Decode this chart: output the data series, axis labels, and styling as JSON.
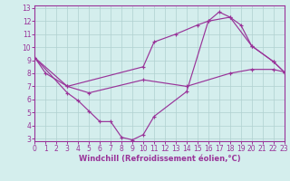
{
  "line1_x": [
    0,
    1,
    3,
    10,
    11,
    13,
    15,
    16,
    17,
    18,
    19,
    20,
    22,
    23
  ],
  "line1_y": [
    9.2,
    8.0,
    7.0,
    8.5,
    10.4,
    11.0,
    11.7,
    12.0,
    12.7,
    12.3,
    11.7,
    10.1,
    8.9,
    8.1
  ],
  "line2_x": [
    0,
    3,
    4,
    5,
    6,
    7,
    8,
    9,
    10,
    11,
    14,
    16,
    18,
    20,
    22,
    23
  ],
  "line2_y": [
    9.2,
    6.5,
    5.9,
    5.1,
    4.3,
    4.3,
    3.1,
    2.9,
    3.3,
    4.7,
    6.6,
    12.0,
    12.3,
    10.1,
    8.9,
    8.1
  ],
  "line3_x": [
    0,
    3,
    5,
    10,
    14,
    18,
    20,
    22,
    23
  ],
  "line3_y": [
    9.2,
    7.0,
    6.5,
    7.5,
    7.0,
    8.0,
    8.3,
    8.3,
    8.1
  ],
  "line_color": "#993399",
  "bg_color": "#d4eeed",
  "grid_color": "#b0d0d0",
  "xlabel": "Windchill (Refroidissement éolien,°C)",
  "xlim": [
    0,
    23
  ],
  "ylim": [
    2.8,
    13.2
  ],
  "xticks": [
    0,
    1,
    2,
    3,
    4,
    5,
    6,
    7,
    8,
    9,
    10,
    11,
    12,
    13,
    14,
    15,
    16,
    17,
    18,
    19,
    20,
    21,
    22,
    23
  ],
  "yticks": [
    3,
    4,
    5,
    6,
    7,
    8,
    9,
    10,
    11,
    12,
    13
  ],
  "xlabel_fontsize": 6.0,
  "tick_fontsize": 5.5
}
